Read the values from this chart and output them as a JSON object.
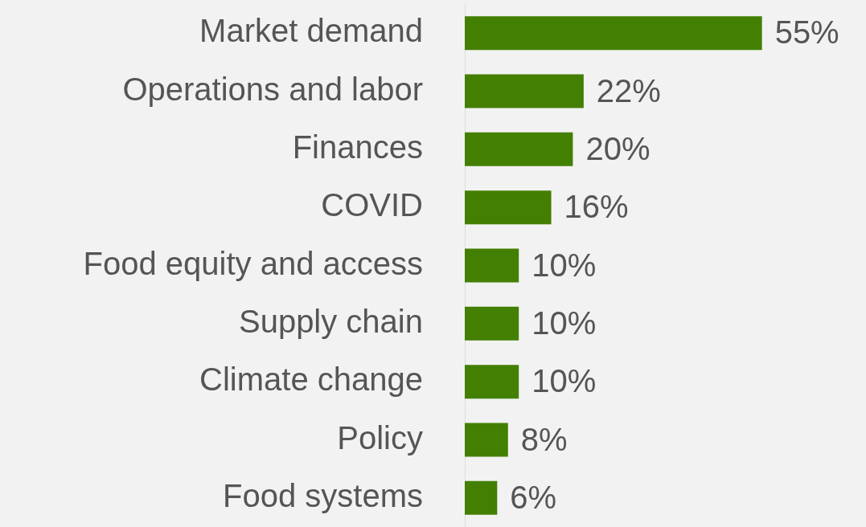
{
  "chart_data": {
    "type": "bar",
    "orientation": "horizontal",
    "tick_labels": "y",
    "legend": false,
    "color": "#437f00",
    "categories": [
      "Market demand",
      "Operations and labor",
      "Finances",
      "COVID",
      "Food equity and access",
      "Supply chain",
      "Climate change",
      "Policy",
      "Food systems"
    ],
    "values": [
      55,
      22,
      20,
      16,
      10,
      10,
      10,
      8,
      6
    ],
    "value_labels": [
      "55%",
      "22%",
      "20%",
      "16%",
      "10%",
      "10%",
      "10%",
      "8%",
      "6%"
    ]
  }
}
